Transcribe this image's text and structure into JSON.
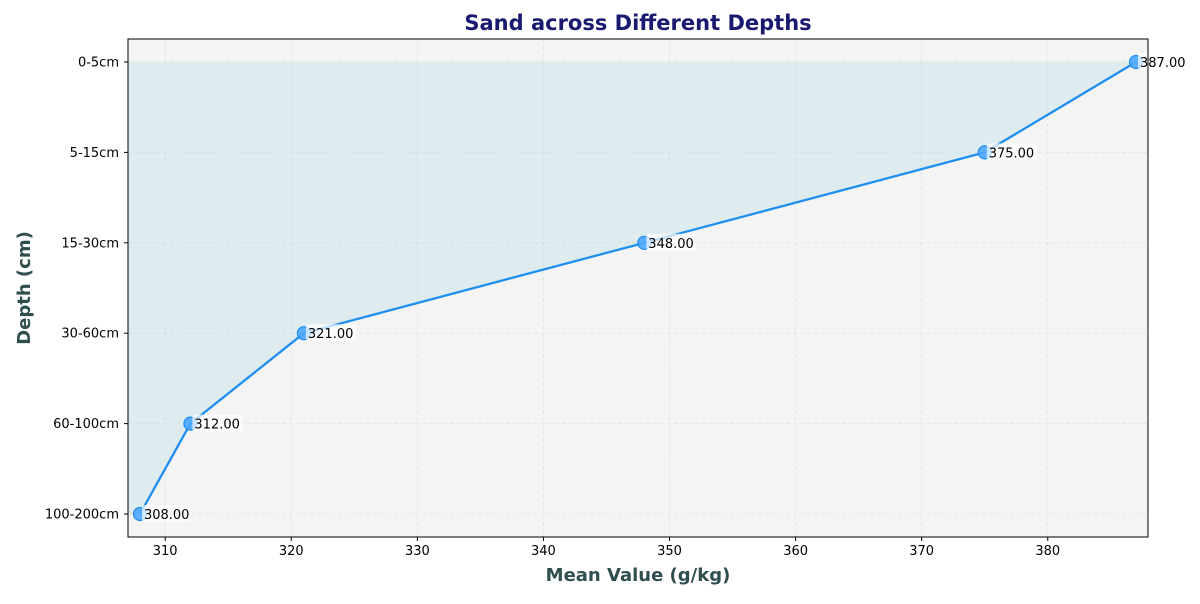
{
  "chart_data": {
    "type": "line",
    "title": "Sand across Different Depths",
    "xlabel": "Mean Value (g/kg)",
    "ylabel": "Depth (cm)",
    "xlim": [
      307.05,
      387.95
    ],
    "x_ticks": [
      310,
      320,
      330,
      340,
      350,
      360,
      370,
      380
    ],
    "categories": [
      "0-5cm",
      "5-15cm",
      "15-30cm",
      "30-60cm",
      "60-100cm",
      "100-200cm"
    ],
    "values": [
      387,
      375,
      348,
      321,
      312,
      308
    ],
    "data_labels": [
      "387.00",
      "375.00",
      "348.00",
      "321.00",
      "312.00",
      "308.00"
    ],
    "grid": true,
    "fill_under_line": true,
    "colors": {
      "line": "#1e8ff0",
      "marker": "#4da6ff",
      "fill": "#add8e6",
      "plot_background": "#f4f4f4",
      "title": "#191970",
      "axis_label": "#2f4f4f",
      "grid": "#d9e6d9"
    }
  }
}
